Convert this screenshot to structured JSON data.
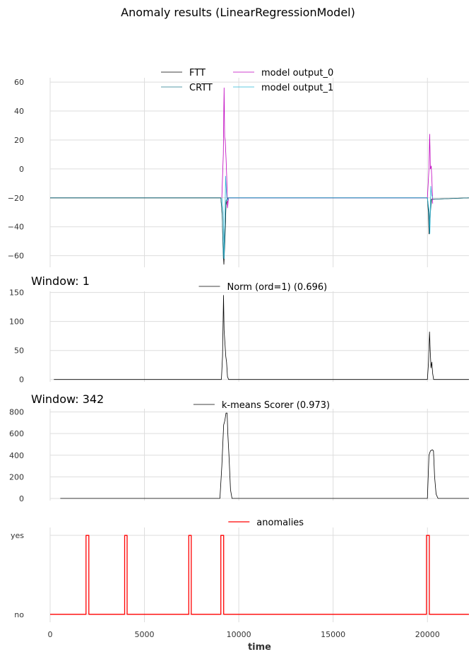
{
  "figure": {
    "title": "Anomaly results (LinearRegressionModel)",
    "xlabel": "time"
  },
  "colors": {
    "FTT": "#000000",
    "CRTT": "#1f7a8c",
    "model_output_0": "#bf00bf",
    "model_output_1": "#2ab7d6",
    "norm": "#000000",
    "kmeans": "#000000",
    "anomalies": "#ff0000",
    "grid": "#dddddd"
  },
  "chart_data": [
    {
      "type": "line",
      "title": "",
      "xlim": [
        0,
        22200
      ],
      "ylim": [
        -68,
        63
      ],
      "yticks": [
        60,
        40,
        20,
        0,
        -20,
        -40,
        -60
      ],
      "ytick_labels": [
        "60",
        "40",
        "20",
        "0",
        "−20",
        "−40",
        "−60"
      ],
      "legend": {
        "placement": "top-center",
        "columns": 2
      },
      "series": [
        {
          "name": "FTT",
          "color_key": "FTT",
          "x": [
            0,
            9050,
            9120,
            9170,
            9210,
            9260,
            9320,
            9420,
            20000,
            20050,
            20090,
            20130,
            20200,
            22200
          ],
          "y": [
            -20,
            -20,
            -32,
            -55,
            -66,
            -50,
            -25,
            -20,
            -20,
            -30,
            -45,
            -33,
            -21,
            -20
          ]
        },
        {
          "name": "CRTT",
          "color_key": "CRTT",
          "x": [
            0,
            9050,
            9120,
            9180,
            9240,
            9320,
            9420,
            20000,
            20060,
            20110,
            20160,
            20220,
            22200
          ],
          "y": [
            -20,
            -20,
            -30,
            -62,
            -45,
            -22,
            -20,
            -20,
            -28,
            -44,
            -30,
            -21,
            -20
          ]
        },
        {
          "name": "model output_0",
          "color_key": "model_output_0",
          "x": [
            9100,
            9180,
            9220,
            9250,
            9280,
            9320,
            9360,
            9400,
            9460,
            20000,
            20080,
            20120,
            20160,
            20200,
            20240,
            20280
          ],
          "y": [
            -20,
            10,
            56,
            22,
            20,
            8,
            -5,
            -27,
            -20,
            -20,
            0,
            24,
            0,
            2,
            -8,
            -24
          ]
        },
        {
          "name": "model output_1",
          "color_key": "model_output_1",
          "x": [
            9100,
            9180,
            9220,
            9260,
            9300,
            9340,
            9380,
            9460,
            20000,
            20080,
            20130,
            20180,
            20220,
            20280
          ],
          "y": [
            -20,
            -30,
            -62,
            -40,
            -5,
            -15,
            -22,
            -20,
            -20,
            -28,
            -45,
            -12,
            -18,
            -20
          ]
        }
      ]
    },
    {
      "type": "line",
      "title": "Window: 1",
      "xlim": [
        0,
        22200
      ],
      "ylim": [
        -4,
        152
      ],
      "yticks": [
        150,
        100,
        50,
        0
      ],
      "ytick_labels": [
        "150",
        "100",
        "50",
        "0"
      ],
      "legend": {
        "placement": "top-center",
        "columns": 1
      },
      "series": [
        {
          "name": "Norm (ord=1) (0.696)",
          "color_key": "norm",
          "x": [
            200,
            9080,
            9140,
            9190,
            9220,
            9250,
            9280,
            9310,
            9350,
            9400,
            9460,
            20000,
            20060,
            20110,
            20150,
            20190,
            20230,
            20280,
            20330,
            22200
          ],
          "y": [
            0,
            0,
            40,
            145,
            85,
            70,
            55,
            40,
            30,
            5,
            0,
            0,
            30,
            82,
            50,
            20,
            30,
            10,
            0,
            0
          ]
        }
      ]
    },
    {
      "type": "line",
      "title": "Window: 342",
      "xlim": [
        0,
        22200
      ],
      "ylim": [
        -20,
        830
      ],
      "yticks": [
        800,
        600,
        400,
        200,
        0
      ],
      "ytick_labels": [
        "800",
        "600",
        "400",
        "200",
        "0"
      ],
      "legend": {
        "placement": "top-center",
        "columns": 1
      },
      "series": [
        {
          "name": "k-means Scorer (0.973)",
          "color_key": "kmeans",
          "x": [
            540,
            9000,
            9100,
            9200,
            9260,
            9320,
            9380,
            9420,
            9480,
            9560,
            9640,
            20000,
            20080,
            20160,
            20260,
            20320,
            20380,
            20460,
            20560,
            22200
          ],
          "y": [
            0,
            0,
            300,
            680,
            720,
            790,
            790,
            600,
            400,
            80,
            0,
            0,
            400,
            440,
            450,
            440,
            200,
            40,
            0,
            0
          ]
        }
      ]
    },
    {
      "type": "line",
      "title": "",
      "xlim": [
        0,
        22200
      ],
      "ylim": [
        -0.1,
        1.1
      ],
      "yticks": [
        1,
        0
      ],
      "ytick_labels": [
        "yes",
        "no"
      ],
      "xticks": [
        0,
        5000,
        10000,
        15000,
        20000
      ],
      "xtick_labels": [
        "0",
        "5000",
        "10000",
        "15000",
        "20000"
      ],
      "legend": {
        "placement": "top-center",
        "columns": 1
      },
      "series": [
        {
          "name": "anomalies",
          "color_key": "anomalies",
          "x": [
            0,
            1900,
            1900,
            2050,
            2050,
            3950,
            3950,
            4080,
            4080,
            7350,
            7350,
            7480,
            7480,
            9050,
            9050,
            9200,
            9200,
            19950,
            19950,
            20100,
            20100,
            22200
          ],
          "y": [
            0,
            0,
            1,
            1,
            0,
            0,
            1,
            1,
            0,
            0,
            1,
            1,
            0,
            0,
            1,
            1,
            0,
            0,
            1,
            1,
            0,
            0
          ]
        }
      ]
    }
  ]
}
